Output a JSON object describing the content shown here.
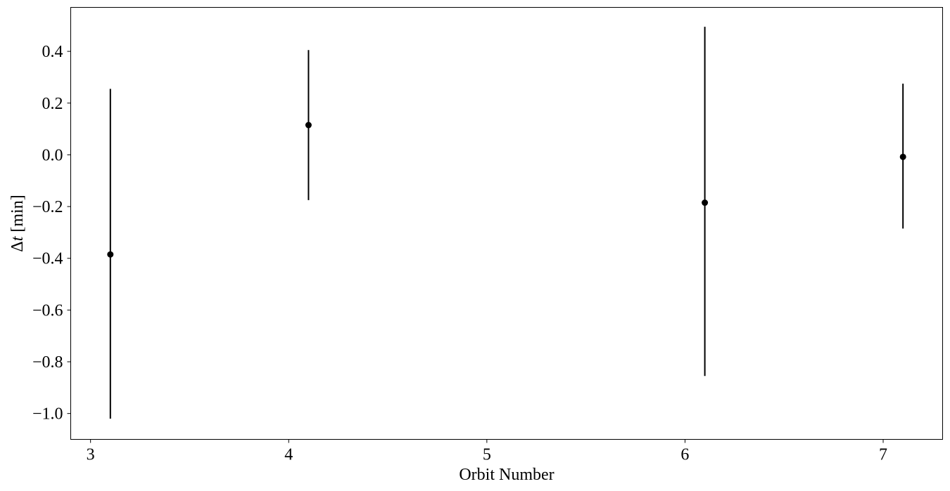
{
  "chart_data": {
    "type": "scatter",
    "error_bars": "vertical",
    "xlabel": "Orbit Number",
    "ylabel": {
      "symbol": "Δ",
      "variable": "t",
      "unit": " [min]"
    },
    "xlim": [
      2.9,
      7.3
    ],
    "ylim": [
      -1.1,
      0.57
    ],
    "xticks": [
      3,
      4,
      5,
      6,
      7
    ],
    "xtick_labels": [
      "3",
      "4",
      "5",
      "6",
      "7"
    ],
    "yticks": [
      -1.0,
      -0.8,
      -0.6,
      -0.4,
      -0.2,
      0.0,
      0.2,
      0.4
    ],
    "ytick_labels": [
      "−1.0",
      "−0.8",
      "−0.6",
      "−0.4",
      "−0.2",
      "0.0",
      "0.2",
      "0.4"
    ],
    "grid": false,
    "legend": "none",
    "points": [
      {
        "x": 3.1,
        "y": -0.385,
        "err_low": -1.02,
        "err_high": 0.255
      },
      {
        "x": 4.1,
        "y": 0.115,
        "err_low": -0.175,
        "err_high": 0.405
      },
      {
        "x": 6.1,
        "y": -0.185,
        "err_low": -0.855,
        "err_high": 0.495
      },
      {
        "x": 7.1,
        "y": -0.008,
        "err_low": -0.285,
        "err_high": 0.275
      }
    ],
    "colors": {
      "marker": "#000000",
      "errorbar": "#000000",
      "axes": "#000000"
    }
  }
}
